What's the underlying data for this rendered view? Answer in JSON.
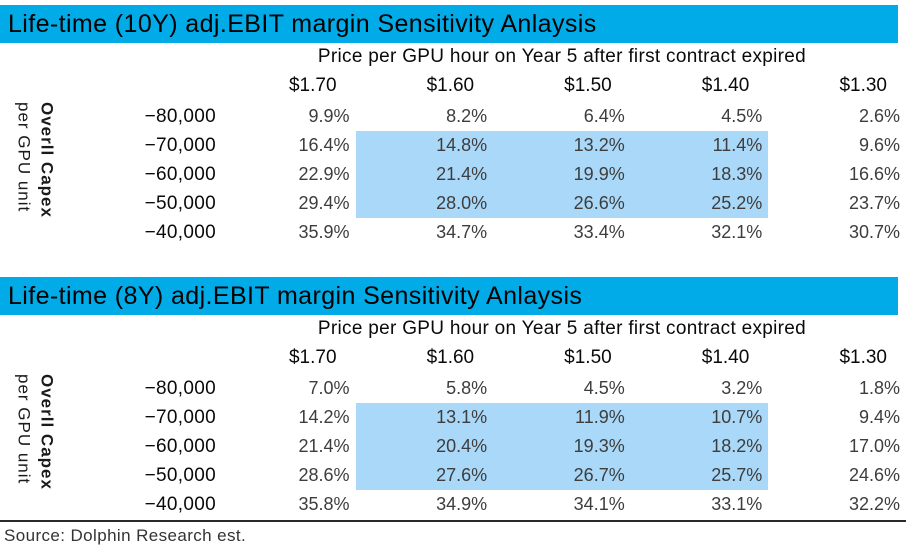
{
  "colors": {
    "title_bar_bg": "#00ABE8",
    "highlight_bg": "#AAD8F8",
    "title_text": "#000000",
    "value_text": "#3D3D3D"
  },
  "tables": [
    {
      "title": "Life-time (10Y) adj.EBIT margin Sensitivity Anlaysis",
      "price_header": "Price per GPU hour on Year 5 after first contract expired",
      "row_axis": {
        "main": "Overll Capex",
        "sub": "per GPU unit"
      },
      "columns": [
        "$1.70",
        "$1.60",
        "$1.50",
        "$1.40",
        "$1.30"
      ],
      "rows": [
        {
          "label": "−80,000",
          "values": [
            "9.9%",
            "8.2%",
            "6.4%",
            "4.5%",
            "2.6%"
          ]
        },
        {
          "label": "−70,000",
          "values": [
            "16.4%",
            "14.8%",
            "13.2%",
            "11.4%",
            "9.6%"
          ]
        },
        {
          "label": "−60,000",
          "values": [
            "22.9%",
            "21.4%",
            "19.9%",
            "18.3%",
            "16.6%"
          ]
        },
        {
          "label": "−50,000",
          "values": [
            "29.4%",
            "28.0%",
            "26.6%",
            "25.2%",
            "23.7%"
          ]
        },
        {
          "label": "−40,000",
          "values": [
            "35.9%",
            "34.7%",
            "33.4%",
            "32.1%",
            "30.7%"
          ]
        }
      ],
      "highlight": {
        "row_start": 1,
        "row_end": 3,
        "col_start": 1,
        "col_end": 3
      }
    },
    {
      "title": "Life-time (8Y) adj.EBIT margin Sensitivity Anlaysis",
      "price_header": "Price per GPU hour on Year 5 after first contract expired",
      "row_axis": {
        "main": "Overll Capex",
        "sub": "per GPU unit"
      },
      "columns": [
        "$1.70",
        "$1.60",
        "$1.50",
        "$1.40",
        "$1.30"
      ],
      "rows": [
        {
          "label": "−80,000",
          "values": [
            "7.0%",
            "5.8%",
            "4.5%",
            "3.2%",
            "1.8%"
          ]
        },
        {
          "label": "−70,000",
          "values": [
            "14.2%",
            "13.1%",
            "11.9%",
            "10.7%",
            "9.4%"
          ]
        },
        {
          "label": "−60,000",
          "values": [
            "21.4%",
            "20.4%",
            "19.3%",
            "18.2%",
            "17.0%"
          ]
        },
        {
          "label": "−50,000",
          "values": [
            "28.6%",
            "27.6%",
            "26.7%",
            "25.7%",
            "24.6%"
          ]
        },
        {
          "label": "−40,000",
          "values": [
            "35.8%",
            "34.9%",
            "34.1%",
            "33.1%",
            "32.2%"
          ]
        }
      ],
      "highlight": {
        "row_start": 1,
        "row_end": 3,
        "col_start": 1,
        "col_end": 3
      }
    }
  ],
  "footer": {
    "source": "Source: Dolphin Research est."
  },
  "chart_data": [
    {
      "type": "table",
      "title": "Life-time (10Y) adj.EBIT margin Sensitivity Anlaysis",
      "column_axis_label": "Price per GPU hour on Year 5 after first contract expired",
      "row_axis_label": "Overll Capex per GPU unit",
      "columns_usd_per_gpu_hour": [
        1.7,
        1.6,
        1.5,
        1.4,
        1.3
      ],
      "rows_capex_per_gpu_unit": [
        -80000,
        -70000,
        -60000,
        -50000,
        -40000
      ],
      "values_pct": [
        [
          9.9,
          8.2,
          6.4,
          4.5,
          2.6
        ],
        [
          16.4,
          14.8,
          13.2,
          11.4,
          9.6
        ],
        [
          22.9,
          21.4,
          19.9,
          18.3,
          16.6
        ],
        [
          29.4,
          28.0,
          26.6,
          25.2,
          23.7
        ],
        [
          35.9,
          34.7,
          33.4,
          32.1,
          30.7
        ]
      ],
      "highlighted_block": {
        "rows": [
          -70000,
          -60000,
          -50000
        ],
        "columns": [
          1.6,
          1.5,
          1.4
        ]
      }
    },
    {
      "type": "table",
      "title": "Life-time (8Y) adj.EBIT margin Sensitivity Anlaysis",
      "column_axis_label": "Price per GPU hour on Year 5 after first contract expired",
      "row_axis_label": "Overll Capex per GPU unit",
      "columns_usd_per_gpu_hour": [
        1.7,
        1.6,
        1.5,
        1.4,
        1.3
      ],
      "rows_capex_per_gpu_unit": [
        -80000,
        -70000,
        -60000,
        -50000,
        -40000
      ],
      "values_pct": [
        [
          7.0,
          5.8,
          4.5,
          3.2,
          1.8
        ],
        [
          14.2,
          13.1,
          11.9,
          10.7,
          9.4
        ],
        [
          21.4,
          20.4,
          19.3,
          18.2,
          17.0
        ],
        [
          28.6,
          27.6,
          26.7,
          25.7,
          24.6
        ],
        [
          35.8,
          34.9,
          34.1,
          33.1,
          32.2
        ]
      ],
      "highlighted_block": {
        "rows": [
          -70000,
          -60000,
          -50000
        ],
        "columns": [
          1.6,
          1.5,
          1.4
        ]
      }
    }
  ]
}
